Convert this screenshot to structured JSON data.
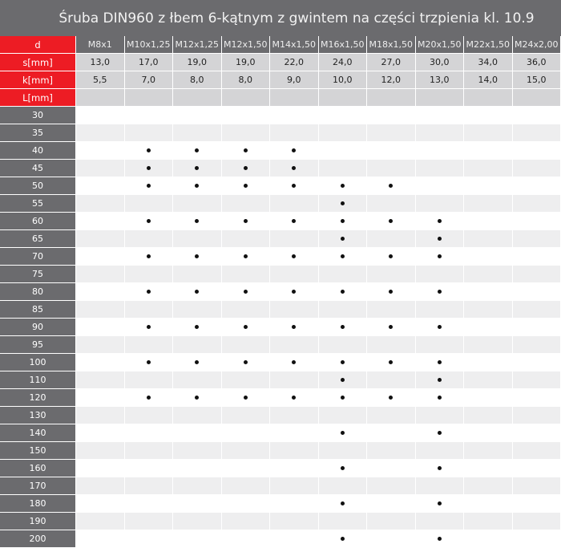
{
  "title": "Śruba DIN960 z łbem 6-kątnym z gwintem na części trzpienia kl. 10.9",
  "colors": {
    "label_red": "#ed1c24",
    "header_gray": "#6b6b6e"
  },
  "header": {
    "d_label": "d",
    "s_label": "s[mm]",
    "k_label": "k[mm]",
    "L_label": "L[mm]",
    "sizes": [
      "M8x1",
      "M10x1,25",
      "M12x1,25",
      "M12x1,50",
      "M14x1,50",
      "M16x1,50",
      "M18x1,50",
      "M20x1,50",
      "M22x1,50",
      "M24x2,00"
    ],
    "s_values": [
      "13,0",
      "17,0",
      "19,0",
      "19,0",
      "22,0",
      "24,0",
      "27,0",
      "30,0",
      "34,0",
      "36,0"
    ],
    "k_values": [
      "5,5",
      "7,0",
      "8,0",
      "8,0",
      "9,0",
      "10,0",
      "12,0",
      "13,0",
      "14,0",
      "15,0"
    ]
  },
  "availability_icon": "bullet-dot",
  "rows": [
    {
      "L": "30",
      "marks": [
        0,
        0,
        0,
        0,
        0,
        0,
        0,
        0,
        0,
        0
      ]
    },
    {
      "L": "35",
      "marks": [
        0,
        0,
        0,
        0,
        0,
        0,
        0,
        0,
        0,
        0
      ]
    },
    {
      "L": "40",
      "marks": [
        0,
        1,
        1,
        1,
        1,
        0,
        0,
        0,
        0,
        0
      ]
    },
    {
      "L": "45",
      "marks": [
        0,
        1,
        1,
        1,
        1,
        0,
        0,
        0,
        0,
        0
      ]
    },
    {
      "L": "50",
      "marks": [
        0,
        1,
        1,
        1,
        1,
        1,
        1,
        0,
        0,
        0
      ]
    },
    {
      "L": "55",
      "marks": [
        0,
        0,
        0,
        0,
        0,
        1,
        0,
        0,
        0,
        0
      ]
    },
    {
      "L": "60",
      "marks": [
        0,
        1,
        1,
        1,
        1,
        1,
        1,
        1,
        0,
        0
      ]
    },
    {
      "L": "65",
      "marks": [
        0,
        0,
        0,
        0,
        0,
        1,
        0,
        1,
        0,
        0
      ]
    },
    {
      "L": "70",
      "marks": [
        0,
        1,
        1,
        1,
        1,
        1,
        1,
        1,
        0,
        0
      ]
    },
    {
      "L": "75",
      "marks": [
        0,
        0,
        0,
        0,
        0,
        0,
        0,
        0,
        0,
        0
      ]
    },
    {
      "L": "80",
      "marks": [
        0,
        1,
        1,
        1,
        1,
        1,
        1,
        1,
        0,
        0
      ]
    },
    {
      "L": "85",
      "marks": [
        0,
        0,
        0,
        0,
        0,
        0,
        0,
        0,
        0,
        0
      ]
    },
    {
      "L": "90",
      "marks": [
        0,
        1,
        1,
        1,
        1,
        1,
        1,
        1,
        0,
        0
      ]
    },
    {
      "L": "95",
      "marks": [
        0,
        0,
        0,
        0,
        0,
        0,
        0,
        0,
        0,
        0
      ]
    },
    {
      "L": "100",
      "marks": [
        0,
        1,
        1,
        1,
        1,
        1,
        1,
        1,
        0,
        0
      ]
    },
    {
      "L": "110",
      "marks": [
        0,
        0,
        0,
        0,
        0,
        1,
        0,
        1,
        0,
        0
      ]
    },
    {
      "L": "120",
      "marks": [
        0,
        1,
        1,
        1,
        1,
        1,
        1,
        1,
        0,
        0
      ]
    },
    {
      "L": "130",
      "marks": [
        0,
        0,
        0,
        0,
        0,
        0,
        0,
        0,
        0,
        0
      ]
    },
    {
      "L": "140",
      "marks": [
        0,
        0,
        0,
        0,
        0,
        1,
        0,
        1,
        0,
        0
      ]
    },
    {
      "L": "150",
      "marks": [
        0,
        0,
        0,
        0,
        0,
        0,
        0,
        0,
        0,
        0
      ]
    },
    {
      "L": "160",
      "marks": [
        0,
        0,
        0,
        0,
        0,
        1,
        0,
        1,
        0,
        0
      ]
    },
    {
      "L": "170",
      "marks": [
        0,
        0,
        0,
        0,
        0,
        0,
        0,
        0,
        0,
        0
      ]
    },
    {
      "L": "180",
      "marks": [
        0,
        0,
        0,
        0,
        0,
        1,
        0,
        1,
        0,
        0
      ]
    },
    {
      "L": "190",
      "marks": [
        0,
        0,
        0,
        0,
        0,
        0,
        0,
        0,
        0,
        0
      ]
    },
    {
      "L": "200",
      "marks": [
        0,
        0,
        0,
        0,
        0,
        1,
        0,
        1,
        0,
        0
      ]
    }
  ]
}
